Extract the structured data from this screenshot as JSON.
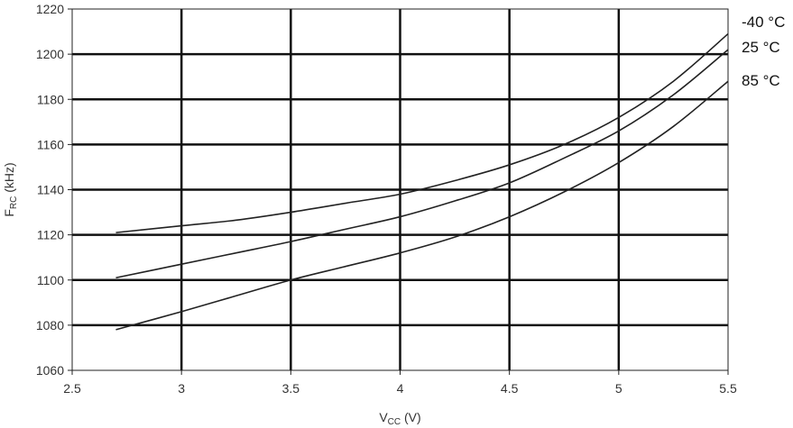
{
  "chart_data": {
    "type": "line",
    "title": "",
    "xlabel": {
      "main": "V",
      "sub": "CC",
      "unit": " (V)"
    },
    "ylabel": {
      "main": "F",
      "sub": "RC",
      "unit": " (kHz)"
    },
    "xlim": [
      2.5,
      5.5
    ],
    "ylim": [
      1060,
      1220
    ],
    "x_ticks": [
      2.5,
      3,
      3.5,
      4,
      4.5,
      5,
      5.5
    ],
    "x_tick_labels": [
      "2.5",
      "3",
      "3.5",
      "4",
      "4.5",
      "5",
      "5.5"
    ],
    "y_ticks": [
      1060,
      1080,
      1100,
      1120,
      1140,
      1160,
      1180,
      1200,
      1220
    ],
    "y_tick_labels": [
      "1060",
      "1080",
      "1100",
      "1120",
      "1140",
      "1160",
      "1180",
      "1200",
      "1220"
    ],
    "grid": true,
    "legend": "right, labels beside line ends",
    "line_color": "#222222",
    "grid_color": "#111111",
    "series": [
      {
        "name": "-40 °C",
        "x": [
          2.7,
          3.0,
          3.25,
          3.5,
          3.75,
          4.0,
          4.25,
          4.5,
          4.75,
          5.0,
          5.25,
          5.5
        ],
        "y": [
          1121,
          1124,
          1126.5,
          1130,
          1134,
          1138,
          1144,
          1151,
          1160,
          1172,
          1188,
          1209
        ]
      },
      {
        "name": "25 °C",
        "x": [
          2.7,
          3.0,
          3.25,
          3.5,
          3.75,
          4.0,
          4.25,
          4.5,
          4.75,
          5.0,
          5.25,
          5.5
        ],
        "y": [
          1101,
          1107,
          1112,
          1117,
          1122.5,
          1128,
          1135,
          1143,
          1154,
          1166,
          1182,
          1202
        ]
      },
      {
        "name": "85 °C",
        "x": [
          2.7,
          3.0,
          3.25,
          3.5,
          3.75,
          4.0,
          4.25,
          4.5,
          4.75,
          5.0,
          5.25,
          5.5
        ],
        "y": [
          1078,
          1086,
          1093,
          1100,
          1106,
          1112,
          1119,
          1128,
          1139,
          1152,
          1168,
          1188
        ]
      }
    ]
  }
}
